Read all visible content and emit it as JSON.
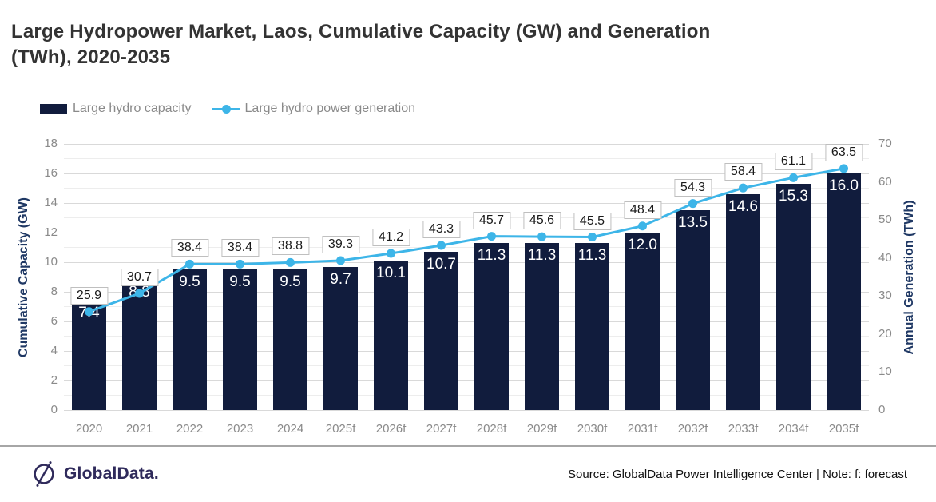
{
  "title": {
    "lines": [
      "Large Hydropower Market, Laos, Cumulative Capacity (GW) and Generation",
      "(TWh), 2020-2035"
    ]
  },
  "legend": {
    "capacity_label": "Large hydro capacity",
    "generation_label": "Large hydro power generation"
  },
  "chart_data": {
    "type": "bar",
    "subtype": "bar+line combo, dual axis",
    "categories": [
      "2020",
      "2021",
      "2022",
      "2023",
      "2024",
      "2025f",
      "2026f",
      "2027f",
      "2028f",
      "2029f",
      "2030f",
      "2031f",
      "2032f",
      "2033f",
      "2034f",
      "2035f"
    ],
    "series": [
      {
        "name": "Large hydro capacity",
        "type": "bar",
        "axis": "left",
        "color": "#111c3d",
        "values": [
          7.4,
          8.8,
          9.5,
          9.5,
          9.5,
          9.7,
          10.1,
          10.7,
          11.3,
          11.3,
          11.3,
          12.0,
          13.5,
          14.6,
          15.3,
          16.0
        ]
      },
      {
        "name": "Large hydro power generation",
        "type": "line",
        "axis": "right",
        "color": "#3db5e8",
        "values": [
          25.9,
          30.7,
          38.4,
          38.4,
          38.8,
          39.3,
          41.2,
          43.3,
          45.7,
          45.6,
          45.5,
          48.4,
          54.3,
          58.4,
          61.1,
          63.5
        ]
      }
    ],
    "left_axis": {
      "label": "Cumulative Capacity (GW)",
      "min": 0,
      "max": 18,
      "step": 2,
      "minor_step": 1
    },
    "right_axis": {
      "label": "Annual Generation (TWh)",
      "min": 0,
      "max": 70,
      "step": 10
    },
    "grid": true,
    "legend_position": "top-left",
    "data_labels": {
      "bar": "inside-end white",
      "line": "boxed above point"
    }
  },
  "colors": {
    "bar": "#111c3d",
    "line": "#3db5e8",
    "grid_major": "#d9d9d9",
    "grid_minor": "#ededed",
    "axis_title": "#1f3864",
    "tick": "#8a8a8a",
    "logo": "#2f2a5b"
  },
  "footer": {
    "logo_text": "GlobalData.",
    "source": "Source: GlobalData Power Intelligence Center | Note: f: forecast"
  }
}
